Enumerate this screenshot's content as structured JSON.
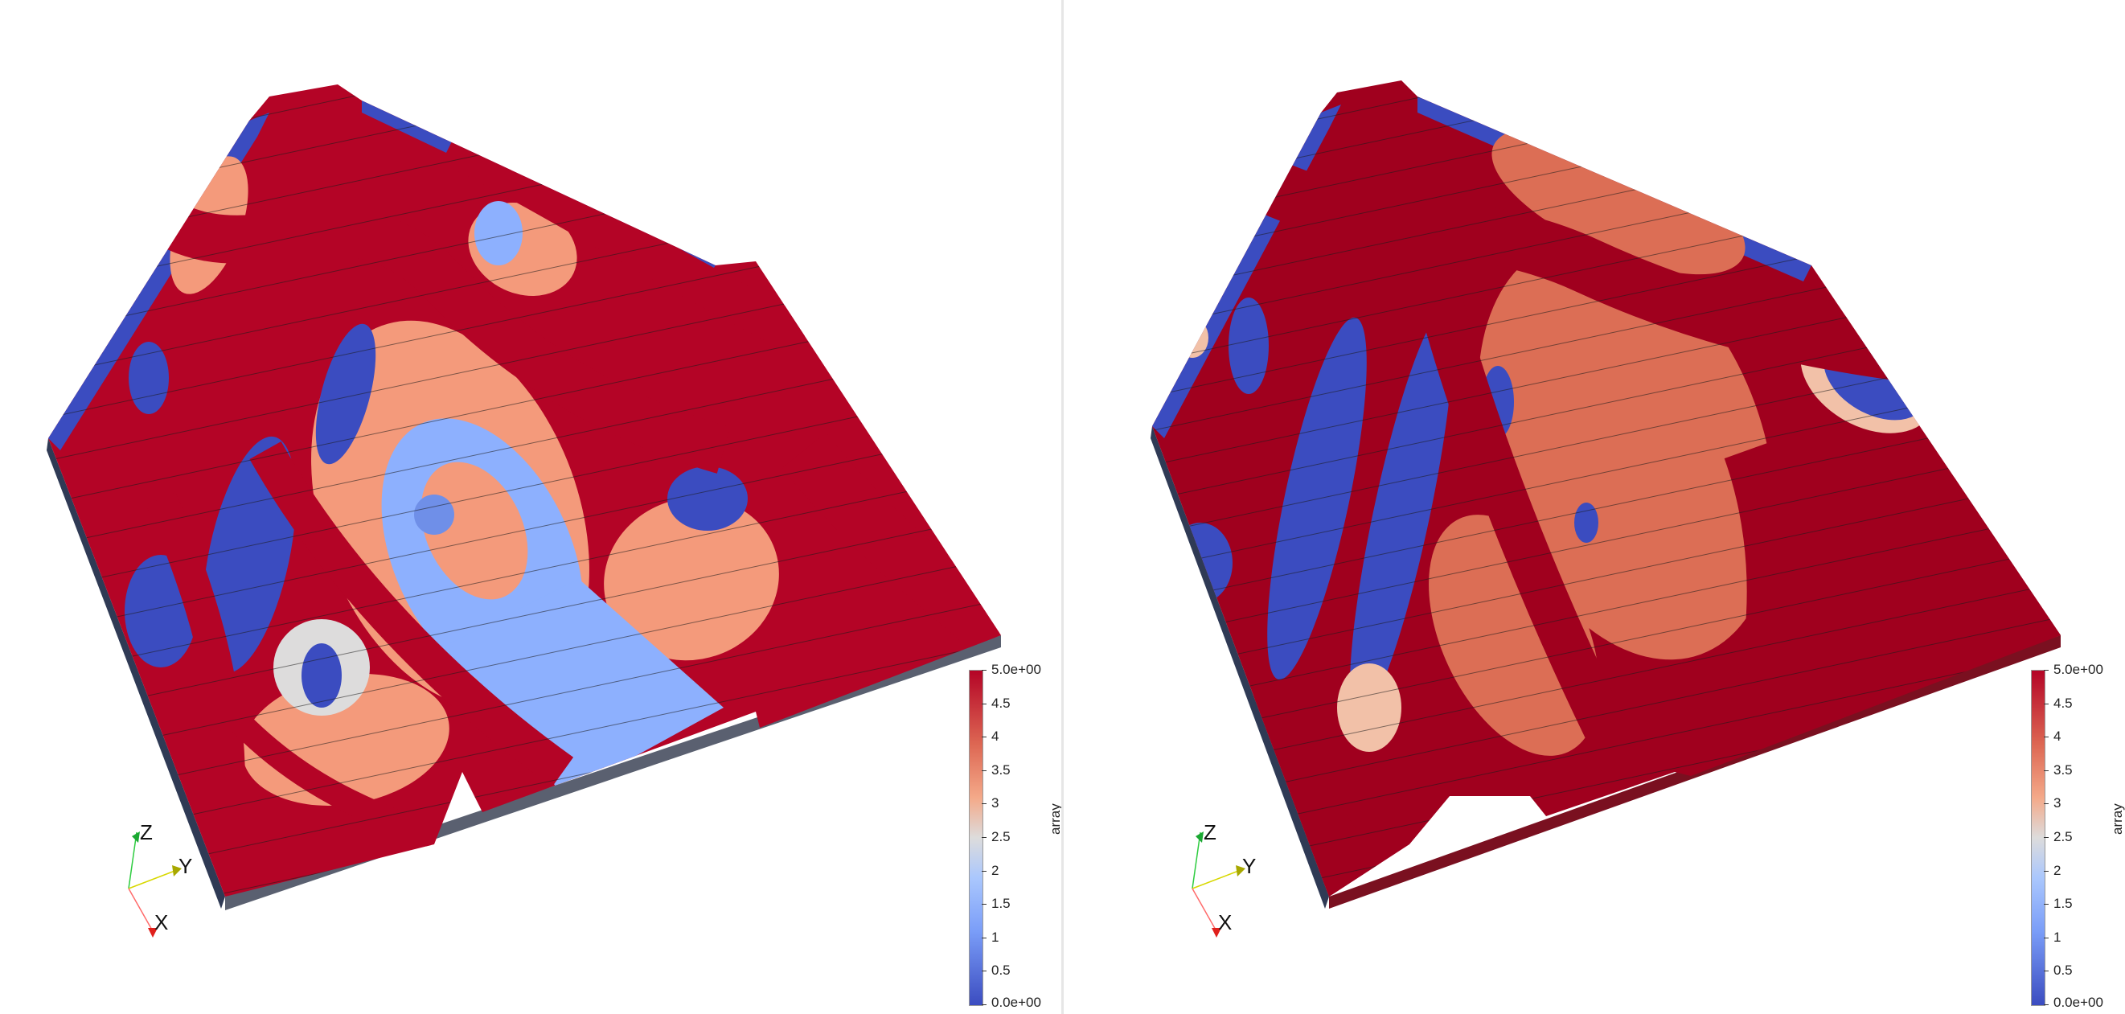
{
  "colormap": {
    "low": "#3b4cc0",
    "mid_low": "#8db0fe",
    "mid": "#dddcdc",
    "mid_high": "#f49a7b",
    "high": "#b40426",
    "dark_high": "#a0001e"
  },
  "views": [
    {
      "id": "left",
      "axes": {
        "x_label": "X",
        "y_label": "Y",
        "z_label": "Z"
      },
      "colorbar": {
        "title": "array",
        "range": [
          0,
          5
        ],
        "max_label": "5.0e+00",
        "min_label": "0.0e+00",
        "tick_labels": [
          "4.5",
          "4",
          "3.5",
          "3",
          "2.5",
          "2",
          "1.5",
          "1",
          "0.5"
        ]
      }
    },
    {
      "id": "right",
      "axes": {
        "x_label": "X",
        "y_label": "Y",
        "z_label": "Z"
      },
      "colorbar": {
        "title": "array",
        "range": [
          0,
          5
        ],
        "max_label": "5.0e+00",
        "min_label": "0.0e+00",
        "tick_labels": [
          "4.5",
          "4",
          "3.5",
          "3",
          "2.5",
          "2",
          "1.5",
          "1",
          "0.5"
        ]
      }
    }
  ]
}
